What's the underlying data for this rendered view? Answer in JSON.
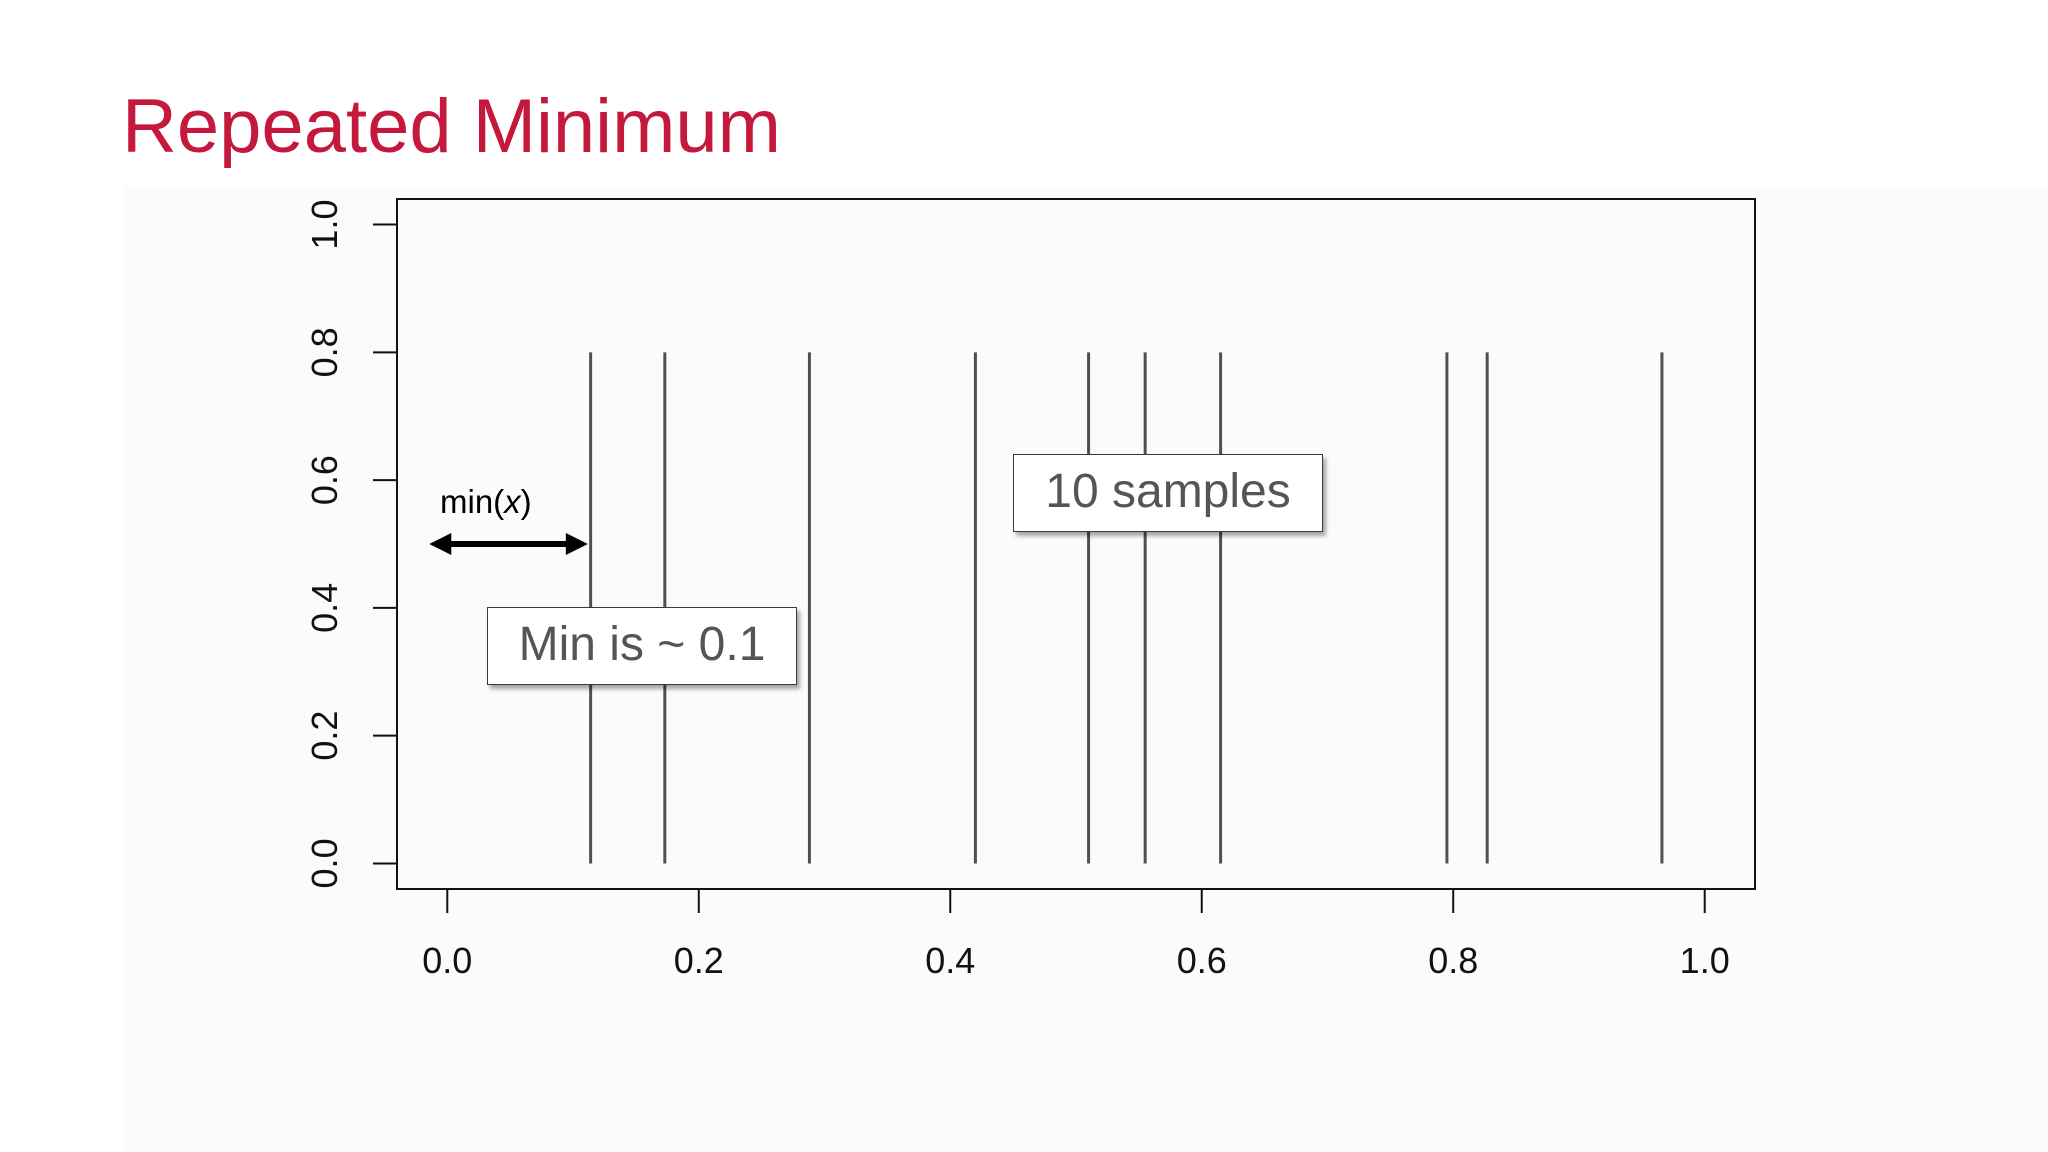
{
  "slide": {
    "title": "Repeated Minimum"
  },
  "chart_data": {
    "type": "rug",
    "x": [
      0.114,
      0.173,
      0.288,
      0.42,
      0.51,
      0.555,
      0.615,
      0.795,
      0.827,
      0.966
    ],
    "y_from": 0.0,
    "y_to": 0.8,
    "xlim": [
      -0.04,
      1.04
    ],
    "ylim": [
      -0.04,
      1.04
    ],
    "xticks": [
      "0.0",
      "0.2",
      "0.4",
      "0.6",
      "0.8",
      "1.0"
    ],
    "yticks": [
      "0.0",
      "0.2",
      "0.4",
      "0.6",
      "0.8",
      "1.0"
    ],
    "xlabel": "",
    "ylabel": "",
    "grid": false,
    "line_color": "#505050",
    "annotations": {
      "samples_box": "10 samples",
      "min_box": "Min is ~ 0.1",
      "min_label_prefix": "min(",
      "min_label_var": "x",
      "min_label_suffix": ")",
      "arrow_from_x": 0.0,
      "arrow_to_x": 0.107,
      "arrow_y": 0.5
    }
  },
  "colors": {
    "title": "#c4183c",
    "callout_text": "#555555"
  }
}
